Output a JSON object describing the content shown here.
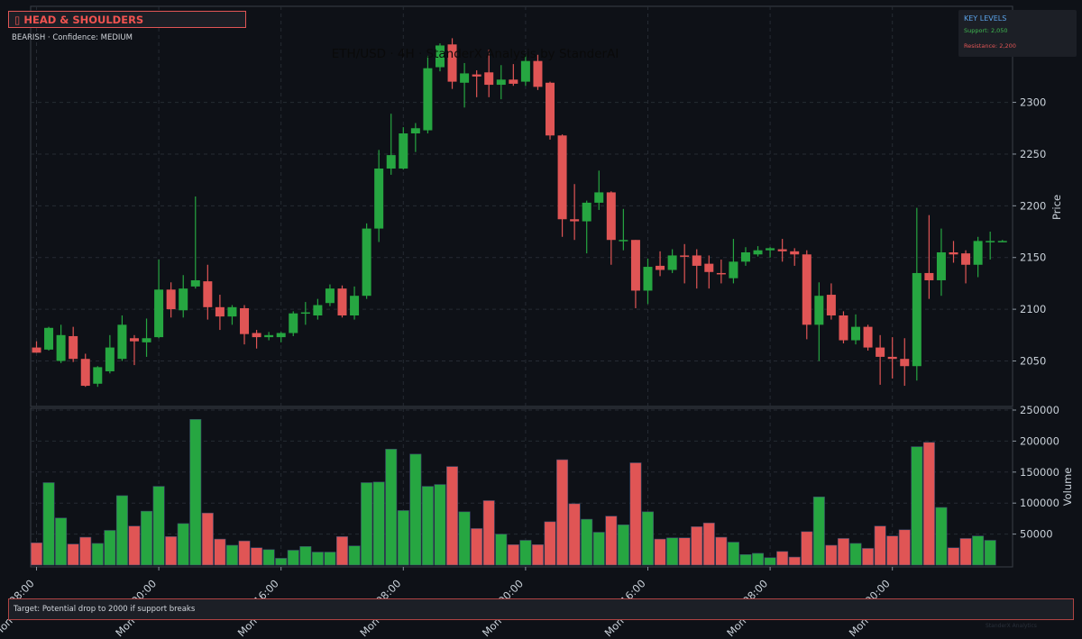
{
  "pattern": {
    "icon": "warning-icon",
    "title": "HEAD & SHOULDERS",
    "subtitle": "BEARISH · Confidence: MEDIUM"
  },
  "key_levels": {
    "title": "KEY LEVELS",
    "support": "Support: 2,050",
    "resistance": "Resistance: 2,200"
  },
  "target": "Target: Potential drop to 2000 if support breaks",
  "watermark": "StanderX Analytics",
  "colors": {
    "up": "#26a641",
    "down": "#e05555",
    "background": "#0e1117",
    "grid": "#262b33",
    "text": "#c9d1d9"
  },
  "chart_data": {
    "type": "candlestick",
    "title": "ETH/USD · 4H · StanderX Analysis by StanderAI",
    "ylabel_price": "Price",
    "ylabel_volume": "Volume",
    "price_ylim": [
      2010,
      2340
    ],
    "price_ticks": [
      2050,
      2100,
      2150,
      2200,
      2250,
      2300
    ],
    "volume_ylim": [
      0,
      250000
    ],
    "volume_ticks": [
      50000,
      100000,
      150000,
      200000,
      250000
    ],
    "x_ticks": [
      {
        "i": 0,
        "label": "08:00",
        "date": "Mon"
      },
      {
        "i": 10,
        "label": "00:00",
        "date": "Mon"
      },
      {
        "i": 20,
        "label": "16:00",
        "date": "Mon"
      },
      {
        "i": 30,
        "label": "08:00",
        "date": "Mon"
      },
      {
        "i": 40,
        "label": "00:00",
        "date": "Mon"
      },
      {
        "i": 50,
        "label": "16:00",
        "date": "Mon"
      },
      {
        "i": 60,
        "label": "08:00",
        "date": "Mon"
      },
      {
        "i": 70,
        "label": "00:00",
        "date": "Mon"
      }
    ],
    "grid": true,
    "candles": [
      {
        "o": 2063,
        "h": 2069,
        "l": 2058,
        "c": 2058,
        "v": 36000
      },
      {
        "o": 2061,
        "h": 2083,
        "l": 2060,
        "c": 2082,
        "v": 133000
      },
      {
        "o": 2050,
        "h": 2085,
        "l": 2048,
        "c": 2075,
        "v": 76000
      },
      {
        "o": 2074,
        "h": 2083,
        "l": 2049,
        "c": 2052,
        "v": 34000
      },
      {
        "o": 2052,
        "h": 2057,
        "l": 2025,
        "c": 2026,
        "v": 45000
      },
      {
        "o": 2028,
        "h": 2045,
        "l": 2025,
        "c": 2044,
        "v": 35000
      },
      {
        "o": 2040,
        "h": 2075,
        "l": 2038,
        "c": 2063,
        "v": 56000
      },
      {
        "o": 2052,
        "h": 2094,
        "l": 2050,
        "c": 2085,
        "v": 112000
      },
      {
        "o": 2072,
        "h": 2075,
        "l": 2046,
        "c": 2069,
        "v": 63000
      },
      {
        "o": 2068,
        "h": 2091,
        "l": 2054,
        "c": 2072,
        "v": 87000
      },
      {
        "o": 2073,
        "h": 2148,
        "l": 2072,
        "c": 2119,
        "v": 127000
      },
      {
        "o": 2119,
        "h": 2126,
        "l": 2092,
        "c": 2100,
        "v": 46000
      },
      {
        "o": 2099,
        "h": 2133,
        "l": 2092,
        "c": 2120,
        "v": 67000
      },
      {
        "o": 2122,
        "h": 2209,
        "l": 2120,
        "c": 2128,
        "v": 235000
      },
      {
        "o": 2127,
        "h": 2143,
        "l": 2090,
        "c": 2102,
        "v": 84000
      },
      {
        "o": 2102,
        "h": 2114,
        "l": 2080,
        "c": 2093,
        "v": 42000
      },
      {
        "o": 2093,
        "h": 2104,
        "l": 2085,
        "c": 2102,
        "v": 32000
      },
      {
        "o": 2101,
        "h": 2104,
        "l": 2066,
        "c": 2076,
        "v": 39000
      },
      {
        "o": 2077,
        "h": 2080,
        "l": 2062,
        "c": 2073,
        "v": 28000
      },
      {
        "o": 2073,
        "h": 2078,
        "l": 2070,
        "c": 2075,
        "v": 25000
      },
      {
        "o": 2073,
        "h": 2078,
        "l": 2068,
        "c": 2077,
        "v": 11000
      },
      {
        "o": 2077,
        "h": 2098,
        "l": 2074,
        "c": 2096,
        "v": 24000
      },
      {
        "o": 2096,
        "h": 2107,
        "l": 2085,
        "c": 2097,
        "v": 30000
      },
      {
        "o": 2094,
        "h": 2110,
        "l": 2090,
        "c": 2104,
        "v": 21000
      },
      {
        "o": 2106,
        "h": 2124,
        "l": 2103,
        "c": 2120,
        "v": 21000
      },
      {
        "o": 2120,
        "h": 2123,
        "l": 2092,
        "c": 2094,
        "v": 46000
      },
      {
        "o": 2094,
        "h": 2122,
        "l": 2090,
        "c": 2113,
        "v": 31000
      },
      {
        "o": 2113,
        "h": 2183,
        "l": 2110,
        "c": 2178,
        "v": 133000
      },
      {
        "o": 2178,
        "h": 2254,
        "l": 2165,
        "c": 2236,
        "v": 134000
      },
      {
        "o": 2236,
        "h": 2289,
        "l": 2230,
        "c": 2249,
        "v": 187000
      },
      {
        "o": 2236,
        "h": 2276,
        "l": 2235,
        "c": 2270,
        "v": 88000
      },
      {
        "o": 2270,
        "h": 2280,
        "l": 2252,
        "c": 2275,
        "v": 179000
      },
      {
        "o": 2273,
        "h": 2345,
        "l": 2270,
        "c": 2333,
        "v": 127000
      },
      {
        "o": 2334,
        "h": 2357,
        "l": 2330,
        "c": 2355,
        "v": 130000
      },
      {
        "o": 2356,
        "h": 2362,
        "l": 2313,
        "c": 2320,
        "v": 159000
      },
      {
        "o": 2319,
        "h": 2338,
        "l": 2295,
        "c": 2328,
        "v": 86000
      },
      {
        "o": 2327,
        "h": 2331,
        "l": 2305,
        "c": 2325,
        "v": 59000
      },
      {
        "o": 2329,
        "h": 2351,
        "l": 2305,
        "c": 2317,
        "v": 104000
      },
      {
        "o": 2317,
        "h": 2336,
        "l": 2303,
        "c": 2322,
        "v": 50000
      },
      {
        "o": 2322,
        "h": 2337,
        "l": 2316,
        "c": 2318,
        "v": 33000
      },
      {
        "o": 2320,
        "h": 2346,
        "l": 2316,
        "c": 2340,
        "v": 40000
      },
      {
        "o": 2340,
        "h": 2346,
        "l": 2312,
        "c": 2315,
        "v": 33000
      },
      {
        "o": 2319,
        "h": 2320,
        "l": 2264,
        "c": 2268,
        "v": 70000
      },
      {
        "o": 2268,
        "h": 2269,
        "l": 2170,
        "c": 2187,
        "v": 170000
      },
      {
        "o": 2187,
        "h": 2221,
        "l": 2167,
        "c": 2185,
        "v": 99000
      },
      {
        "o": 2185,
        "h": 2205,
        "l": 2154,
        "c": 2203,
        "v": 74000
      },
      {
        "o": 2203,
        "h": 2234,
        "l": 2196,
        "c": 2213,
        "v": 53000
      },
      {
        "o": 2213,
        "h": 2214,
        "l": 2143,
        "c": 2167,
        "v": 79000
      },
      {
        "o": 2167,
        "h": 2197,
        "l": 2157,
        "c": 2167,
        "v": 65000
      },
      {
        "o": 2167,
        "h": 2167,
        "l": 2101,
        "c": 2118,
        "v": 165000
      },
      {
        "o": 2118,
        "h": 2149,
        "l": 2105,
        "c": 2141,
        "v": 86000
      },
      {
        "o": 2142,
        "h": 2156,
        "l": 2132,
        "c": 2138,
        "v": 42000
      },
      {
        "o": 2138,
        "h": 2158,
        "l": 2135,
        "c": 2152,
        "v": 44000
      },
      {
        "o": 2152,
        "h": 2163,
        "l": 2125,
        "c": 2151,
        "v": 44000
      },
      {
        "o": 2152,
        "h": 2158,
        "l": 2120,
        "c": 2142,
        "v": 62000
      },
      {
        "o": 2144,
        "h": 2152,
        "l": 2120,
        "c": 2136,
        "v": 68000
      },
      {
        "o": 2135,
        "h": 2148,
        "l": 2125,
        "c": 2134,
        "v": 45000
      },
      {
        "o": 2130,
        "h": 2168,
        "l": 2125,
        "c": 2146,
        "v": 37000
      },
      {
        "o": 2146,
        "h": 2160,
        "l": 2142,
        "c": 2155,
        "v": 17000
      },
      {
        "o": 2153,
        "h": 2161,
        "l": 2151,
        "c": 2157,
        "v": 19000
      },
      {
        "o": 2157,
        "h": 2160,
        "l": 2150,
        "c": 2159,
        "v": 12000
      },
      {
        "o": 2158,
        "h": 2168,
        "l": 2146,
        "c": 2156,
        "v": 22000
      },
      {
        "o": 2156,
        "h": 2159,
        "l": 2142,
        "c": 2153,
        "v": 13000
      },
      {
        "o": 2153,
        "h": 2157,
        "l": 2071,
        "c": 2085,
        "v": 54000
      },
      {
        "o": 2085,
        "h": 2126,
        "l": 2050,
        "c": 2113,
        "v": 110000
      },
      {
        "o": 2114,
        "h": 2125,
        "l": 2090,
        "c": 2094,
        "v": 32000
      },
      {
        "o": 2094,
        "h": 2098,
        "l": 2067,
        "c": 2070,
        "v": 43000
      },
      {
        "o": 2070,
        "h": 2095,
        "l": 2066,
        "c": 2083,
        "v": 35000
      },
      {
        "o": 2083,
        "h": 2085,
        "l": 2060,
        "c": 2063,
        "v": 27000
      },
      {
        "o": 2063,
        "h": 2075,
        "l": 2027,
        "c": 2054,
        "v": 63000
      },
      {
        "o": 2054,
        "h": 2073,
        "l": 2033,
        "c": 2052,
        "v": 47000
      },
      {
        "o": 2052,
        "h": 2072,
        "l": 2026,
        "c": 2045,
        "v": 57000
      },
      {
        "o": 2045,
        "h": 2198,
        "l": 2031,
        "c": 2135,
        "v": 191000
      },
      {
        "o": 2135,
        "h": 2191,
        "l": 2110,
        "c": 2128,
        "v": 198000
      },
      {
        "o": 2128,
        "h": 2178,
        "l": 2113,
        "c": 2155,
        "v": 93000
      },
      {
        "o": 2155,
        "h": 2166,
        "l": 2145,
        "c": 2153,
        "v": 28000
      },
      {
        "o": 2154,
        "h": 2157,
        "l": 2125,
        "c": 2143,
        "v": 43000
      },
      {
        "o": 2143,
        "h": 2170,
        "l": 2131,
        "c": 2166,
        "v": 47000
      },
      {
        "o": 2166,
        "h": 2175,
        "l": 2148,
        "c": 2166,
        "v": 40000
      },
      {
        "o": 2166,
        "h": 2167,
        "l": 2165,
        "c": 2166,
        "v": 0
      }
    ]
  }
}
